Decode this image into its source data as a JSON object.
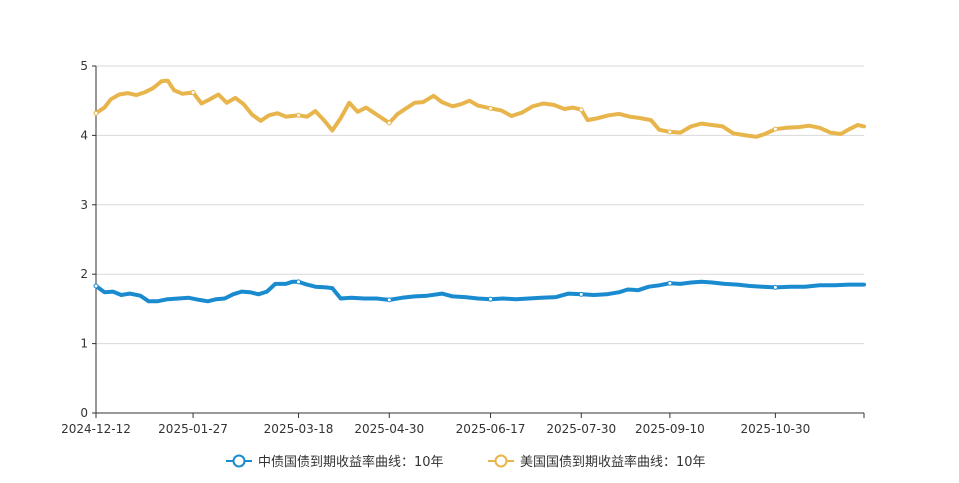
{
  "chart_data": {
    "type": "line",
    "x_ticks": [
      "2024-12-12",
      "2025-01-27",
      "2025-03-18",
      "2025-04-30",
      "2025-06-17",
      "2025-07-30",
      "2025-09-10",
      "2025-10-30"
    ],
    "x_range": [
      "2024-12-12",
      "2025-12-11"
    ],
    "ylim": [
      0,
      5
    ],
    "y_ticks": [
      "0",
      "1",
      "2",
      "3",
      "4",
      "5"
    ],
    "grid": true,
    "legend_position": "bottom",
    "series": [
      {
        "name": "中债国债到期收益率曲线：10年",
        "color": "#1a8bcf",
        "points": [
          [
            "2024-12-12",
            1.83
          ],
          [
            "2024-12-16",
            1.74
          ],
          [
            "2024-12-20",
            1.75
          ],
          [
            "2024-12-24",
            1.7
          ],
          [
            "2024-12-28",
            1.72
          ],
          [
            "2025-01-02",
            1.69
          ],
          [
            "2025-01-06",
            1.61
          ],
          [
            "2025-01-10",
            1.61
          ],
          [
            "2025-01-15",
            1.64
          ],
          [
            "2025-01-20",
            1.65
          ],
          [
            "2025-01-25",
            1.66
          ],
          [
            "2025-01-30",
            1.63
          ],
          [
            "2025-02-03",
            1.61
          ],
          [
            "2025-02-07",
            1.64
          ],
          [
            "2025-02-11",
            1.65
          ],
          [
            "2025-02-15",
            1.71
          ],
          [
            "2025-02-19",
            1.75
          ],
          [
            "2025-02-23",
            1.74
          ],
          [
            "2025-02-27",
            1.71
          ],
          [
            "2025-03-03",
            1.75
          ],
          [
            "2025-03-07",
            1.86
          ],
          [
            "2025-03-12",
            1.86
          ],
          [
            "2025-03-15",
            1.89
          ],
          [
            "2025-03-18",
            1.89
          ],
          [
            "2025-03-22",
            1.85
          ],
          [
            "2025-03-26",
            1.82
          ],
          [
            "2025-03-31",
            1.81
          ],
          [
            "2025-04-03",
            1.8
          ],
          [
            "2025-04-07",
            1.65
          ],
          [
            "2025-04-12",
            1.66
          ],
          [
            "2025-04-18",
            1.65
          ],
          [
            "2025-04-24",
            1.65
          ],
          [
            "2025-04-30",
            1.63
          ],
          [
            "2025-05-06",
            1.66
          ],
          [
            "2025-05-12",
            1.68
          ],
          [
            "2025-05-18",
            1.69
          ],
          [
            "2025-05-25",
            1.72
          ],
          [
            "2025-05-30",
            1.68
          ],
          [
            "2025-06-05",
            1.67
          ],
          [
            "2025-06-11",
            1.65
          ],
          [
            "2025-06-17",
            1.64
          ],
          [
            "2025-06-23",
            1.65
          ],
          [
            "2025-06-29",
            1.64
          ],
          [
            "2025-07-05",
            1.65
          ],
          [
            "2025-07-11",
            1.66
          ],
          [
            "2025-07-18",
            1.67
          ],
          [
            "2025-07-24",
            1.72
          ],
          [
            "2025-07-30",
            1.71
          ],
          [
            "2025-08-05",
            1.7
          ],
          [
            "2025-08-11",
            1.71
          ],
          [
            "2025-08-17",
            1.74
          ],
          [
            "2025-08-21",
            1.78
          ],
          [
            "2025-08-26",
            1.77
          ],
          [
            "2025-08-31",
            1.82
          ],
          [
            "2025-09-05",
            1.84
          ],
          [
            "2025-09-10",
            1.87
          ],
          [
            "2025-09-15",
            1.86
          ],
          [
            "2025-09-20",
            1.88
          ],
          [
            "2025-09-25",
            1.89
          ],
          [
            "2025-09-30",
            1.88
          ],
          [
            "2025-10-06",
            1.86
          ],
          [
            "2025-10-12",
            1.85
          ],
          [
            "2025-10-18",
            1.83
          ],
          [
            "2025-10-24",
            1.82
          ],
          [
            "2025-10-30",
            1.81
          ],
          [
            "2025-11-06",
            1.82
          ],
          [
            "2025-11-13",
            1.82
          ],
          [
            "2025-11-20",
            1.84
          ],
          [
            "2025-11-27",
            1.84
          ],
          [
            "2025-12-04",
            1.85
          ],
          [
            "2025-12-11",
            1.85
          ]
        ]
      },
      {
        "name": "美国国债到期收益率曲线：10年",
        "color": "#e8b54c",
        "points": [
          [
            "2024-12-12",
            4.32
          ],
          [
            "2024-12-16",
            4.4
          ],
          [
            "2024-12-19",
            4.52
          ],
          [
            "2024-12-23",
            4.59
          ],
          [
            "2024-12-27",
            4.61
          ],
          [
            "2024-12-31",
            4.58
          ],
          [
            "2025-01-04",
            4.62
          ],
          [
            "2025-01-08",
            4.68
          ],
          [
            "2025-01-12",
            4.78
          ],
          [
            "2025-01-15",
            4.79
          ],
          [
            "2025-01-18",
            4.65
          ],
          [
            "2025-01-22",
            4.6
          ],
          [
            "2025-01-27",
            4.62
          ],
          [
            "2025-01-31",
            4.46
          ],
          [
            "2025-02-04",
            4.52
          ],
          [
            "2025-02-08",
            4.59
          ],
          [
            "2025-02-12",
            4.47
          ],
          [
            "2025-02-16",
            4.54
          ],
          [
            "2025-02-20",
            4.45
          ],
          [
            "2025-02-24",
            4.3
          ],
          [
            "2025-02-28",
            4.21
          ],
          [
            "2025-03-04",
            4.29
          ],
          [
            "2025-03-08",
            4.32
          ],
          [
            "2025-03-12",
            4.27
          ],
          [
            "2025-03-18",
            4.29
          ],
          [
            "2025-03-22",
            4.27
          ],
          [
            "2025-03-26",
            4.35
          ],
          [
            "2025-03-30",
            4.22
          ],
          [
            "2025-04-03",
            4.07
          ],
          [
            "2025-04-07",
            4.25
          ],
          [
            "2025-04-11",
            4.47
          ],
          [
            "2025-04-15",
            4.34
          ],
          [
            "2025-04-19",
            4.4
          ],
          [
            "2025-04-23",
            4.32
          ],
          [
            "2025-04-30",
            4.18
          ],
          [
            "2025-05-04",
            4.31
          ],
          [
            "2025-05-08",
            4.39
          ],
          [
            "2025-05-12",
            4.47
          ],
          [
            "2025-05-16",
            4.48
          ],
          [
            "2025-05-21",
            4.57
          ],
          [
            "2025-05-25",
            4.48
          ],
          [
            "2025-05-30",
            4.42
          ],
          [
            "2025-06-03",
            4.45
          ],
          [
            "2025-06-07",
            4.5
          ],
          [
            "2025-06-11",
            4.43
          ],
          [
            "2025-06-17",
            4.39
          ],
          [
            "2025-06-22",
            4.36
          ],
          [
            "2025-06-27",
            4.28
          ],
          [
            "2025-07-02",
            4.33
          ],
          [
            "2025-07-07",
            4.42
          ],
          [
            "2025-07-12",
            4.46
          ],
          [
            "2025-07-17",
            4.44
          ],
          [
            "2025-07-22",
            4.38
          ],
          [
            "2025-07-26",
            4.4
          ],
          [
            "2025-07-30",
            4.37
          ],
          [
            "2025-08-02",
            4.22
          ],
          [
            "2025-08-07",
            4.25
          ],
          [
            "2025-08-12",
            4.29
          ],
          [
            "2025-08-17",
            4.31
          ],
          [
            "2025-08-22",
            4.27
          ],
          [
            "2025-08-27",
            4.25
          ],
          [
            "2025-09-01",
            4.22
          ],
          [
            "2025-09-05",
            4.08
          ],
          [
            "2025-09-10",
            4.05
          ],
          [
            "2025-09-15",
            4.04
          ],
          [
            "2025-09-20",
            4.13
          ],
          [
            "2025-09-25",
            4.17
          ],
          [
            "2025-09-30",
            4.15
          ],
          [
            "2025-10-05",
            4.13
          ],
          [
            "2025-10-10",
            4.03
          ],
          [
            "2025-10-16",
            4.0
          ],
          [
            "2025-10-21",
            3.98
          ],
          [
            "2025-10-25",
            4.02
          ],
          [
            "2025-10-30",
            4.09
          ],
          [
            "2025-11-04",
            4.11
          ],
          [
            "2025-11-10",
            4.12
          ],
          [
            "2025-11-15",
            4.14
          ],
          [
            "2025-11-20",
            4.11
          ],
          [
            "2025-11-25",
            4.04
          ],
          [
            "2025-11-30",
            4.02
          ],
          [
            "2025-12-04",
            4.09
          ],
          [
            "2025-12-08",
            4.15
          ],
          [
            "2025-12-11",
            4.13
          ]
        ]
      }
    ]
  }
}
